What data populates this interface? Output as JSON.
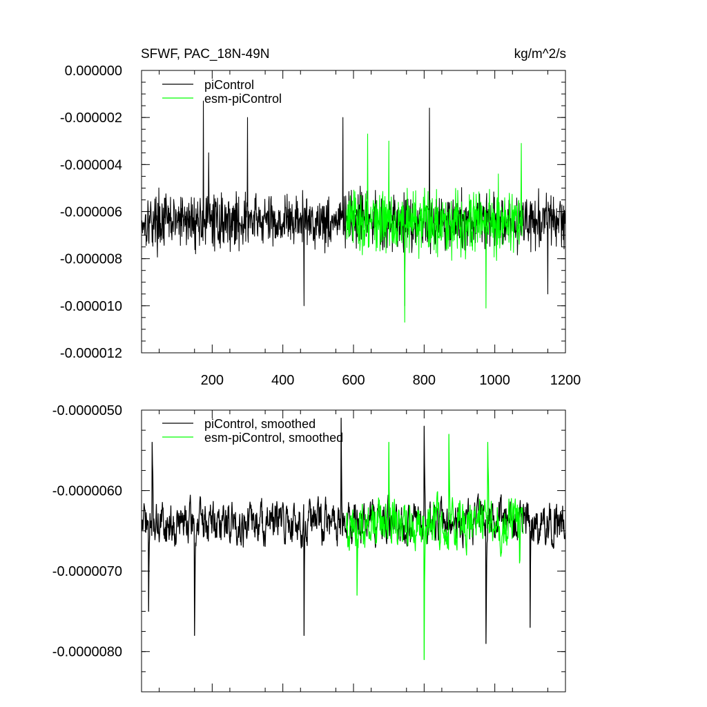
{
  "header": {
    "left_title": "SFWF, PAC_18N-49N",
    "right_units": "kg/m^2/s"
  },
  "colors": {
    "picontrol": "#000000",
    "esm_picontrol": "#00ff00"
  },
  "chart_data": [
    {
      "type": "line",
      "xlim": [
        0,
        1200
      ],
      "ylim": [
        -1.2e-05,
        0.0
      ],
      "x_ticks": [
        200,
        400,
        600,
        800,
        1000,
        1200
      ],
      "x_tick_labels": [
        "200",
        "400",
        "600",
        "800",
        "1000",
        "1200"
      ],
      "y_ticks": [
        0.0,
        -2e-06,
        -4e-06,
        -6e-06,
        -8e-06,
        -1e-05,
        -1.2e-05
      ],
      "y_tick_labels": [
        "0.000000",
        "-0.000002",
        "-0.000004",
        "-0.000006",
        "-0.000008",
        "-0.000010",
        "-0.000012"
      ],
      "legend_position": "top-left",
      "series": [
        {
          "name": "piControl",
          "color": "#000000",
          "x_start": 1,
          "x_end": 1200,
          "mean": -6.4e-06,
          "amplitude": 1.2e-06,
          "notable_points": [
            [
              175,
              -1.3e-06
            ],
            [
              190,
              -3.5e-06
            ],
            [
              300,
              -2e-06
            ],
            [
              460,
              -1e-05
            ],
            [
              570,
              -2e-06
            ],
            [
              815,
              -1.6e-06
            ],
            [
              745,
              -1e-05
            ],
            [
              1150,
              -9.5e-06
            ]
          ]
        },
        {
          "name": "esm-piControl",
          "color": "#00ff00",
          "x_start": 580,
          "x_end": 1080,
          "mean": -6.4e-06,
          "amplitude": 1.4e-06,
          "notable_points": [
            [
              640,
              -2.7e-06
            ],
            [
              700,
              -3e-06
            ],
            [
              745,
              -1.07e-05
            ],
            [
              975,
              -1.01e-05
            ],
            [
              1010,
              -4.4e-06
            ],
            [
              1075,
              -3.1e-06
            ]
          ]
        }
      ]
    },
    {
      "type": "line",
      "xlim": [
        0,
        1200
      ],
      "ylim": [
        -8.5e-06,
        -5e-06
      ],
      "x_ticks": [
        200,
        400,
        600,
        800,
        1000,
        1200
      ],
      "y_ticks": [
        -5e-06,
        -6e-06,
        -7e-06,
        -8e-06
      ],
      "y_tick_labels": [
        "-0.0000050",
        "-0.0000060",
        "-0.0000070",
        "-0.0000080"
      ],
      "legend_position": "top-left",
      "series": [
        {
          "name": "piControl, smoothed",
          "color": "#000000",
          "x_start": 1,
          "x_end": 1200,
          "mean": -6.4e-06,
          "amplitude": 4.5e-07,
          "notable_points": [
            [
              20,
              -7.5e-06
            ],
            [
              30,
              -5.4e-06
            ],
            [
              150,
              -7.8e-06
            ],
            [
              460,
              -7.8e-06
            ],
            [
              565,
              -5.1e-06
            ],
            [
              800,
              -5.2e-06
            ],
            [
              975,
              -7.9e-06
            ],
            [
              1100,
              -7.7e-06
            ]
          ]
        },
        {
          "name": "esm-piControl, smoothed",
          "color": "#00ff00",
          "x_start": 580,
          "x_end": 1080,
          "mean": -6.4e-06,
          "amplitude": 5e-07,
          "notable_points": [
            [
              610,
              -7.3e-06
            ],
            [
              700,
              -5.4e-06
            ],
            [
              800,
              -8.1e-06
            ],
            [
              870,
              -5.3e-06
            ],
            [
              980,
              -5.4e-06
            ],
            [
              1070,
              -6.9e-06
            ]
          ]
        }
      ]
    }
  ]
}
